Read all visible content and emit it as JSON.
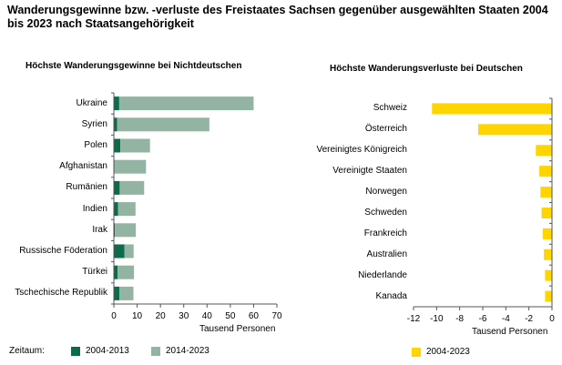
{
  "title": "Wanderungsgewinne bzw. -verluste des Freistaates Sachsen gegenüber ausgewählten Staaten 2004 bis 2023 nach Staatsangehörigkeit",
  "legend_prefix": "Zeitaum:",
  "colors": {
    "dark": "#0d6b4c",
    "light": "#93b3a3",
    "yellow": "#ffd500",
    "axis": "#555555"
  },
  "chart_data": [
    {
      "type": "bar",
      "orientation": "horizontal",
      "title": "Höchste Wanderungsgewinne bei Nichtdeutschen",
      "xlabel": "Tausend Personen",
      "xlim": [
        0,
        70
      ],
      "ticks": [
        0,
        10,
        20,
        30,
        40,
        50,
        60,
        70
      ],
      "categories": [
        "Ukraine",
        "Syrien",
        "Polen",
        "Afghanistan",
        "Rumänien",
        "Indien",
        "Irak",
        "Russische Föderation",
        "Türkei",
        "Tschechische Republik"
      ],
      "series": [
        {
          "name": "2004-2013",
          "color": "#0d6b4c",
          "values": [
            2.3,
            1.4,
            2.8,
            0.3,
            2.5,
            1.8,
            0.4,
            4.5,
            1.6,
            2.4
          ]
        },
        {
          "name": "2014-2023",
          "color": "#93b3a3",
          "values": [
            57.7,
            39.6,
            12.7,
            13.5,
            10.5,
            7.5,
            9.0,
            4.0,
            7.0,
            6.0
          ]
        }
      ]
    },
    {
      "type": "bar",
      "orientation": "horizontal",
      "title": "Höchste Wanderungsverluste bei Deutschen",
      "xlabel": "Tausend Personen",
      "xlim": [
        -12,
        0
      ],
      "ticks": [
        -12,
        -10,
        -8,
        -6,
        -4,
        -2,
        0
      ],
      "categories": [
        "Schweiz",
        "Österreich",
        "Vereinigtes Königreich",
        "Vereinigte Staaten",
        "Norwegen",
        "Schweden",
        "Frankreich",
        "Australien",
        "Niederlande",
        "Kanada"
      ],
      "series": [
        {
          "name": "2004-2023",
          "color": "#ffd500",
          "values": [
            -10.4,
            -6.4,
            -1.4,
            -1.1,
            -1.0,
            -0.9,
            -0.8,
            -0.7,
            -0.6,
            -0.6
          ]
        }
      ]
    }
  ]
}
